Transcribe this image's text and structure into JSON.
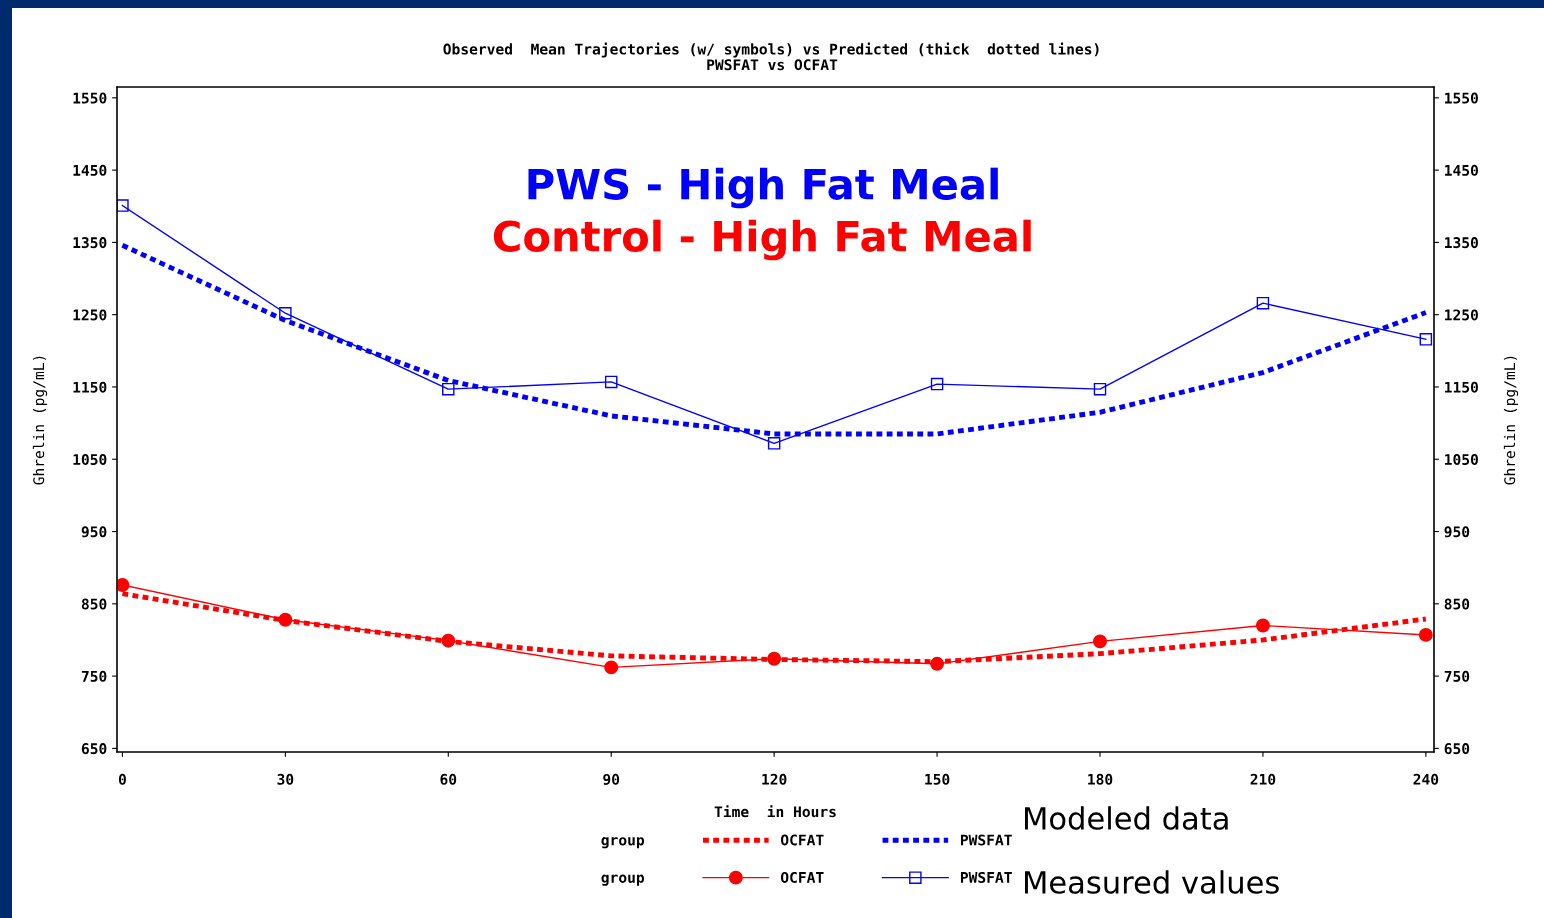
{
  "chart_data": {
    "type": "line",
    "title": "Observed  Mean Trajectories (w/ symbols) vs Predicted (thick  dotted lines)",
    "subtitle": "PWSFAT vs OCFAT",
    "xlabel": "Time  in Hours",
    "ylabel": "Ghrelin (pg/mL)",
    "y2label": "Ghrelin (pg/mL)",
    "legend_title": "group",
    "x": [
      0,
      30,
      60,
      90,
      120,
      150,
      180,
      210,
      240
    ],
    "xlim": [
      -1,
      241.5
    ],
    "xticks": [
      0,
      30,
      60,
      90,
      120,
      150,
      180,
      210,
      240
    ],
    "ylim": [
      645,
      1565
    ],
    "yticks": [
      650,
      750,
      850,
      950,
      1050,
      1150,
      1250,
      1350,
      1450,
      1550
    ],
    "y2lim": [
      645,
      1565
    ],
    "y2ticks": [
      650,
      750,
      850,
      950,
      1050,
      1150,
      1250,
      1350,
      1450,
      1550
    ],
    "grid": false,
    "legend": "bottom",
    "series": [
      {
        "name": "OCFAT",
        "color": "#ff0000",
        "line_style": "dotted",
        "marker": "none",
        "values": [
          864,
          827,
          798,
          778,
          773,
          770,
          781,
          800,
          829
        ]
      },
      {
        "name": "PWSFAT",
        "color": "#0000ff",
        "line_style": "dotted",
        "marker": "none",
        "values": [
          1346,
          1242,
          1159,
          1110,
          1085,
          1085,
          1115,
          1170,
          1253
        ]
      },
      {
        "name": "OCFAT",
        "color": "#ff0000",
        "line_style": "solid",
        "marker": "circle",
        "values": [
          876,
          828,
          799,
          762,
          774,
          767,
          798,
          820,
          807
        ]
      },
      {
        "name": "PWSFAT",
        "color": "#0000ff",
        "line_style": "solid",
        "marker": "square",
        "values": [
          1401,
          1252,
          1147,
          1157,
          1072,
          1154,
          1147,
          1266,
          1216
        ],
        "axis": "y2"
      }
    ],
    "annotations": [
      "PWS - High Fat Meal",
      "Control - High Fat Meal",
      "Modeled data",
      "Measured values"
    ]
  }
}
